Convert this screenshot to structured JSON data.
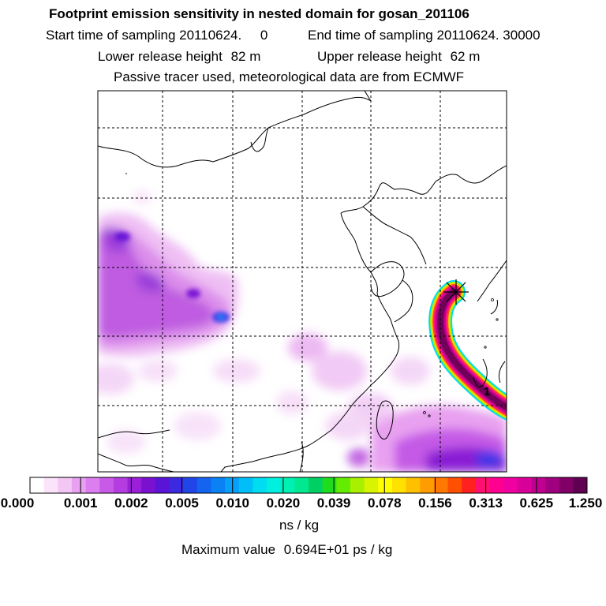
{
  "header": {
    "title": "Footprint emission sensitivity in nested domain for gosan_201106",
    "start_label": "Start time of sampling",
    "start_value": "20110624.     0",
    "end_label": "End time of sampling",
    "end_value": "20110624. 30000",
    "lower_label": "Lower release height",
    "lower_value": "82 m",
    "upper_label": "Upper release height",
    "upper_value": "62 m",
    "tracer_note": "Passive tracer used, meteorological data are from ECMWF"
  },
  "map": {
    "release_marker": "1",
    "station_icon": "star-icon"
  },
  "colorbar": {
    "labels": [
      "0.000",
      "0.001",
      "0.002",
      "0.005",
      "0.010",
      "0.020",
      "0.039",
      "0.078",
      "0.156",
      "0.313",
      "0.625",
      "1.250"
    ],
    "colors": [
      "#ffffff",
      "#fbe4fb",
      "#f3c6f3",
      "#e8a0f0",
      "#dc7ef0",
      "#c85ae8",
      "#b53ce0",
      "#9b1fd8",
      "#7a10d0",
      "#5a14d8",
      "#3c2ae0",
      "#2046e8",
      "#1464f0",
      "#0a82f4",
      "#06a0f8",
      "#00bef8",
      "#00dcf0",
      "#00f0e0",
      "#00f0b4",
      "#00e890",
      "#00d064",
      "#20dc20",
      "#64ec00",
      "#a8f000",
      "#d8f400",
      "#ffff00",
      "#ffe000",
      "#ffc000",
      "#ff9c00",
      "#ff7800",
      "#ff5000",
      "#ff2020",
      "#ff1070",
      "#ff0090",
      "#f000a0",
      "#d80098",
      "#c00090",
      "#a00080",
      "#800068",
      "#600050"
    ],
    "unit": "ns / kg",
    "maximum_label": "Maximum value",
    "maximum_value": "0.694E+01 ps / kg"
  }
}
